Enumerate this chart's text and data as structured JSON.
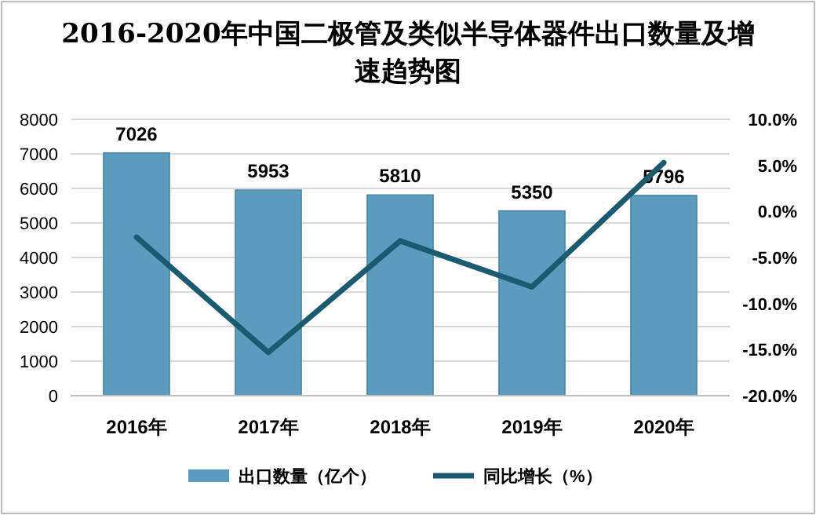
{
  "chart_data": {
    "type": "bar",
    "title": "2016-2020年中国二极管及类似半导体器件出口数量及增速趋势图",
    "categories": [
      "2016年",
      "2017年",
      "2018年",
      "2019年",
      "2020年"
    ],
    "series": [
      {
        "name": "出口数量（亿个）",
        "color": "#5b9bbd",
        "values": [
          7026,
          5953,
          5810,
          5350,
          5796
        ],
        "value_labels": [
          "7026",
          "5953",
          "5810",
          "5350",
          "5796"
        ]
      },
      {
        "name": "同比增长（%）",
        "type": "line",
        "axis": "y2",
        "color": "#1b5a6f",
        "values": [
          -2.8,
          -15.3,
          -3.2,
          -8.2,
          5.3
        ]
      }
    ],
    "ylim": [
      0,
      8000
    ],
    "yticks": [
      0,
      1000,
      2000,
      3000,
      4000,
      5000,
      6000,
      7000,
      8000
    ],
    "y2lim": [
      -20,
      10
    ],
    "y2ticks": [
      {
        "value": -20,
        "label": "-20.0%"
      },
      {
        "value": -15,
        "label": "-15.0%"
      },
      {
        "value": -10,
        "label": "-10.0%"
      },
      {
        "value": -5,
        "label": "-5.0%"
      },
      {
        "value": 0,
        "label": "0.0%"
      },
      {
        "value": 5,
        "label": "5.0%"
      },
      {
        "value": 10,
        "label": "10.0%"
      }
    ],
    "grid": "y",
    "legend": "bottom",
    "marker": "none",
    "line_style": "solid"
  }
}
